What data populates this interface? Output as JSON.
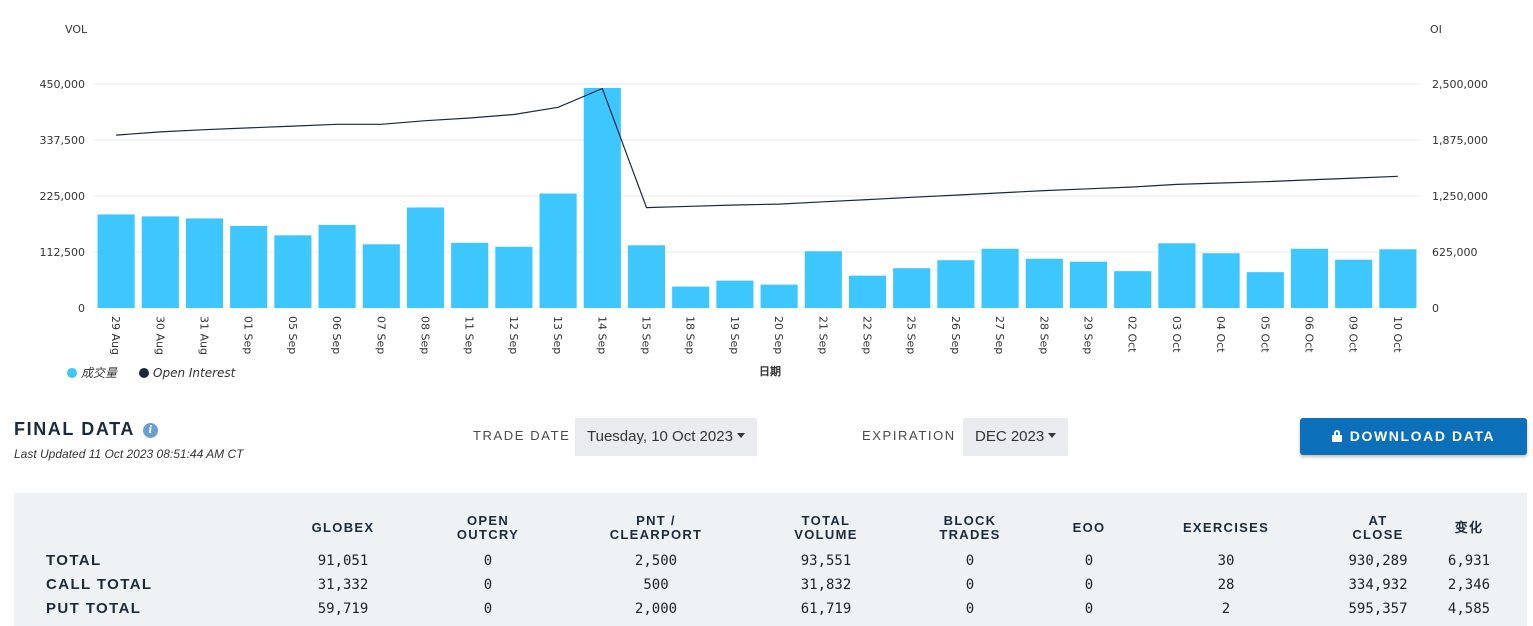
{
  "chart_data": {
    "type": "bar+line",
    "y_left_label": "VOL",
    "y_right_label": "OI",
    "y_left_ticks": [
      "450,000",
      "337,500",
      "225,000",
      "112,500",
      "0"
    ],
    "y_right_ticks": [
      "2,500,000",
      "1,875,000",
      "1,250,000",
      "625,000",
      "0"
    ],
    "ylim_left": [
      0,
      450000
    ],
    "ylim_right": [
      0,
      2500000
    ],
    "xlabel": "日期",
    "categories": [
      "29 Aug",
      "30 Aug",
      "31 Aug",
      "01 Sep",
      "05 Sep",
      "06 Sep",
      "07 Sep",
      "08 Sep",
      "11 Sep",
      "12 Sep",
      "13 Sep",
      "14 Sep",
      "15 Sep",
      "18 Sep",
      "19 Sep",
      "20 Sep",
      "21 Sep",
      "22 Sep",
      "25 Sep",
      "26 Sep",
      "27 Sep",
      "28 Sep",
      "29 Sep",
      "02 Oct",
      "03 Oct",
      "04 Oct",
      "05 Oct",
      "06 Oct",
      "09 Oct",
      "10 Oct"
    ],
    "series": [
      {
        "name": "成交量",
        "kind": "bar",
        "axis": "left",
        "color": "#3ec6ff",
        "values": [
          188000,
          184000,
          180000,
          165000,
          146000,
          167000,
          128000,
          202000,
          131000,
          123000,
          230000,
          442000,
          126000,
          43000,
          55000,
          47000,
          114000,
          65000,
          80000,
          96000,
          119000,
          99000,
          93000,
          74000,
          130000,
          110000,
          72000,
          119000,
          97000,
          118000
        ]
      },
      {
        "name": "Open Interest",
        "kind": "line",
        "axis": "right",
        "color": "#1c2741",
        "values": [
          1930000,
          1965000,
          1990000,
          2010000,
          2030000,
          2050000,
          2050000,
          2090000,
          2120000,
          2160000,
          2240000,
          2450000,
          1120000,
          1135000,
          1150000,
          1160000,
          1185000,
          1210000,
          1235000,
          1260000,
          1285000,
          1310000,
          1330000,
          1350000,
          1380000,
          1395000,
          1410000,
          1430000,
          1450000,
          1470000
        ]
      }
    ],
    "legend_position": "bottom-left",
    "grid": true
  },
  "final": {
    "title": "FINAL DATA",
    "info_icon": "i",
    "last_updated": "Last Updated 11 Oct 2023 08:51:44 AM CT"
  },
  "controls": {
    "trade_date_label": "TRADE DATE",
    "trade_date_value": "Tuesday, 10 Oct 2023",
    "expiration_label": "EXPIRATION",
    "expiration_value": "DEC 2023",
    "download_label": "DOWNLOAD DATA"
  },
  "table": {
    "headers": [
      "GLOBEX",
      "OPEN\nOUTCRY",
      "PNT /\nCLEARPORT",
      "TOTAL\nVOLUME",
      "BLOCK\nTRADES",
      "EOO",
      "EXERCISES",
      "AT\nCLOSE",
      "变化"
    ],
    "rows": [
      {
        "label": "TOTAL",
        "values": [
          "91,051",
          "0",
          "2,500",
          "93,551",
          "0",
          "0",
          "30",
          "930,289",
          "6,931"
        ]
      },
      {
        "label": "CALL TOTAL",
        "values": [
          "31,332",
          "0",
          "500",
          "31,832",
          "0",
          "0",
          "28",
          "334,932",
          "2,346"
        ]
      },
      {
        "label": "PUT TOTAL",
        "values": [
          "59,719",
          "0",
          "2,000",
          "61,719",
          "0",
          "0",
          "2",
          "595,357",
          "4,585"
        ]
      }
    ]
  }
}
